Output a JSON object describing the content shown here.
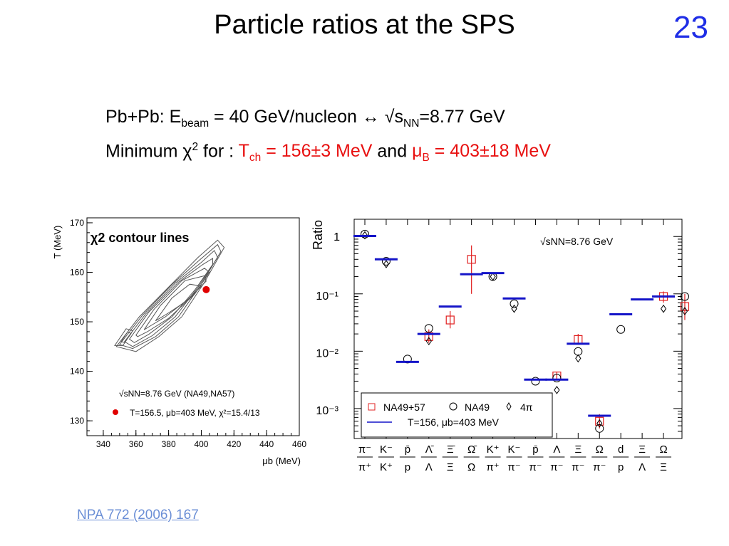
{
  "slide": {
    "title": "Particle ratios at the SPS",
    "number": "23",
    "line1_prefix": "Pb+Pb: E",
    "line1_sub": "beam",
    "line1_mid": " = 40 GeV/nucleon ↔ √s",
    "line1_sub2": "NN",
    "line1_suffix": "=8.77 GeV",
    "line2_prefix": "Minimum χ",
    "line2_sup": "2",
    "line2_mid": " for : ",
    "tch_T": "T",
    "tch_sub": "ch",
    "tch_val": " = 156±3 MeV",
    "line2_and": " and ",
    "mub_mu": "μ",
    "mub_sub": "B",
    "mub_val": " = 403±18 MeV",
    "reference": "NPA 772 (2006) 167",
    "colors": {
      "slide_number": "#1f2ee6",
      "highlight": "#e81010",
      "link": "#6b8fd6"
    }
  },
  "chart_data": [
    {
      "type": "contour",
      "title": "χ2 contour lines",
      "xlabel": "μb (MeV)",
      "ylabel": "T (MeV)",
      "xlim": [
        330,
        460
      ],
      "ylim": [
        127,
        171
      ],
      "xticks": [
        "340",
        "360",
        "380",
        "400",
        "420",
        "440",
        "460"
      ],
      "yticks": [
        "130",
        "140",
        "150",
        "160",
        "170"
      ],
      "best_fit": {
        "x": 403,
        "y": 156.5,
        "color": "#e00000"
      },
      "legend": {
        "line1": "√sNN=8.76 GeV (NA49,NA57)",
        "line2": "T=156.5, μb=403 MeV, χ²=15.4/13"
      },
      "contours": [
        [
          [
            348,
            145
          ],
          [
            362,
            151
          ],
          [
            380,
            157
          ],
          [
            398,
            163
          ],
          [
            410,
            166.5
          ],
          [
            414,
            165
          ],
          [
            402,
            158
          ],
          [
            388,
            151
          ],
          [
            374,
            147
          ],
          [
            360,
            144
          ]
        ],
        [
          [
            350,
            145.4
          ],
          [
            364,
            151.3
          ],
          [
            382,
            157.5
          ],
          [
            399,
            162.5
          ],
          [
            410,
            165.6
          ],
          [
            412,
            164.2
          ],
          [
            400,
            157.6
          ],
          [
            386,
            151
          ],
          [
            372,
            147
          ],
          [
            358,
            144.6
          ]
        ],
        [
          [
            353,
            146
          ],
          [
            366,
            151.6
          ],
          [
            384,
            157.8
          ],
          [
            400,
            162
          ],
          [
            408,
            164.4
          ],
          [
            410,
            163
          ],
          [
            398,
            157
          ],
          [
            384,
            151
          ],
          [
            370,
            147.2
          ],
          [
            358,
            145
          ]
        ],
        [
          [
            356,
            146.5
          ],
          [
            368,
            152
          ],
          [
            386,
            158
          ],
          [
            401,
            161.6
          ],
          [
            407,
            162.8
          ],
          [
            407,
            161.6
          ],
          [
            396,
            156.4
          ],
          [
            382,
            151
          ],
          [
            368,
            147.5
          ],
          [
            359,
            145.8
          ]
        ],
        [
          [
            360,
            147.3
          ],
          [
            371,
            152.5
          ],
          [
            388,
            158.3
          ],
          [
            402,
            160.8
          ],
          [
            405,
            160
          ],
          [
            396,
            155.6
          ],
          [
            380,
            150.7
          ],
          [
            367,
            148
          ],
          [
            361,
            147
          ]
        ],
        [
          [
            365,
            148.4
          ],
          [
            375,
            153.3
          ],
          [
            390,
            158.3
          ],
          [
            402,
            159.3
          ],
          [
            403,
            158.2
          ],
          [
            392,
            154.6
          ],
          [
            378,
            151
          ],
          [
            368,
            149
          ]
        ],
        [
          [
            372,
            150.2
          ],
          [
            382,
            154.8
          ],
          [
            393,
            157.6
          ],
          [
            400,
            157.2
          ],
          [
            392,
            154.4
          ],
          [
            380,
            151.8
          ]
        ],
        [
          [
            347,
            145.2
          ],
          [
            354,
            148.6
          ],
          [
            358,
            148.2
          ],
          [
            352,
            145.2
          ]
        ],
        [
          [
            351,
            146
          ],
          [
            355,
            148
          ],
          [
            357,
            147.6
          ],
          [
            353,
            145.8
          ]
        ]
      ]
    },
    {
      "type": "scatter",
      "ylabel": "Ratio",
      "yscale": "log",
      "ylim": [
        0.0003,
        2
      ],
      "yticks": [
        "1",
        "10⁻¹",
        "10⁻²",
        "10⁻³"
      ],
      "annotation": "√sNN=8.76 GeV",
      "categories": [
        {
          "num": "π⁻",
          "den": "π⁺"
        },
        {
          "num": "K⁻",
          "den": "K⁺"
        },
        {
          "num": "p̄",
          "den": "p"
        },
        {
          "num": "Λ̄",
          "den": "Λ"
        },
        {
          "num": "Ξ̄",
          "den": "Ξ"
        },
        {
          "num": "Ω̄",
          "den": "Ω"
        },
        {
          "num": "K⁺",
          "den": "π⁺"
        },
        {
          "num": "K⁻",
          "den": "π⁻"
        },
        {
          "num": "p̄",
          "den": "π⁻"
        },
        {
          "num": "Λ",
          "den": "π⁻"
        },
        {
          "num": "Ξ",
          "den": "π⁻"
        },
        {
          "num": "Ω",
          "den": "π⁻"
        },
        {
          "num": "d",
          "den": "p"
        },
        {
          "num": "Ξ",
          "den": "Λ"
        },
        {
          "num": "Ω",
          "den": "Ξ"
        }
      ],
      "series": [
        {
          "name": "NA49+57",
          "marker": "square",
          "color": "#e02020",
          "points": [
            [
              3,
              0.018
            ],
            [
              4,
              0.035
            ],
            [
              5,
              0.4
            ],
            [
              9,
              0.0037
            ],
            [
              10,
              0.016
            ],
            [
              11,
              0.0006
            ],
            [
              14,
              0.09
            ],
            [
              15,
              0.06
            ]
          ],
          "errors": [
            [
              3,
              0.014,
              0.024
            ],
            [
              4,
              0.025,
              0.05
            ],
            [
              5,
              0.1,
              0.7
            ],
            [
              9,
              0.0031,
              0.0044
            ],
            [
              10,
              0.013,
              0.02
            ],
            [
              11,
              0.00045,
              0.0008
            ],
            [
              14,
              0.07,
              0.11
            ],
            [
              15,
              0.035,
              0.1
            ]
          ]
        },
        {
          "name": "NA49",
          "marker": "circle",
          "color": "#000000",
          "points": [
            [
              0,
              1.1
            ],
            [
              1,
              0.37
            ],
            [
              2,
              0.0073
            ],
            [
              3,
              0.025
            ],
            [
              6,
              0.2
            ],
            [
              7,
              0.067
            ],
            [
              8,
              0.003
            ],
            [
              9,
              0.0034
            ],
            [
              10,
              0.0099
            ],
            [
              11,
              0.00045
            ],
            [
              12,
              0.024
            ],
            [
              15,
              0.09
            ]
          ]
        },
        {
          "name": "4π",
          "marker": "diamond",
          "color": "#000000",
          "points": [
            [
              0,
              1.05
            ],
            [
              1,
              0.33
            ],
            [
              3,
              0.015
            ],
            [
              6,
              0.2
            ],
            [
              7,
              0.055
            ],
            [
              9,
              0.0021
            ],
            [
              10,
              0.0075
            ],
            [
              11,
              0.00055
            ],
            [
              14,
              0.055
            ],
            [
              15,
              0.05
            ]
          ]
        },
        {
          "name": "T=156, μb=403 MeV",
          "marker": "hline",
          "color": "#1414c8",
          "points": [
            [
              0,
              1.02
            ],
            [
              1,
              0.4
            ],
            [
              2,
              0.0065
            ],
            [
              3,
              0.02
            ],
            [
              4,
              0.06
            ],
            [
              5,
              0.22
            ],
            [
              6,
              0.23
            ],
            [
              7,
              0.083
            ],
            [
              8,
              0.0032
            ],
            [
              9,
              0.0032
            ],
            [
              10,
              0.0135
            ],
            [
              11,
              0.00075
            ],
            [
              12,
              0.044
            ],
            [
              13,
              0.08
            ],
            [
              14,
              0.09
            ]
          ]
        }
      ],
      "legend": {
        "row1": [
          "NA49+57",
          "NA49",
          "4π"
        ],
        "row2": "T=156, μb=403 MeV"
      }
    }
  ]
}
